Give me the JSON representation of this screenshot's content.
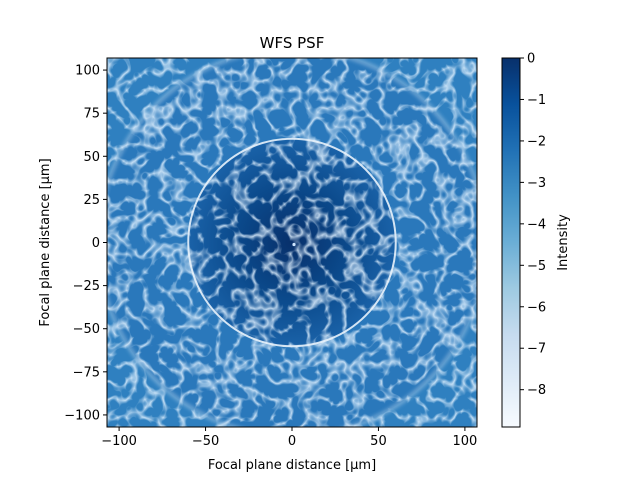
{
  "chart_data": {
    "type": "heatmap",
    "title": "WFS PSF",
    "xlabel": "Focal plane distance [μm]",
    "ylabel": "Focal plane distance [μm]",
    "xlim": [
      -107,
      107
    ],
    "ylim": [
      -107,
      107
    ],
    "xticks": [
      -100,
      -50,
      0,
      50,
      100
    ],
    "xtick_labels": [
      "−100",
      "−50",
      "0",
      "50",
      "100"
    ],
    "yticks": [
      100,
      75,
      50,
      25,
      0,
      -25,
      -50,
      -75,
      -100
    ],
    "ytick_labels": [
      "100",
      "75",
      "50",
      "25",
      "0",
      "−25",
      "−50",
      "−75",
      "−100"
    ],
    "colorbar": {
      "label": "Intensity",
      "range": [
        -8.9,
        0
      ],
      "ticks": [
        0,
        -1,
        -2,
        -3,
        -4,
        -5,
        -6,
        -7,
        -8
      ],
      "tick_labels": [
        "0",
        "−1",
        "−2",
        "−3",
        "−4",
        "−5",
        "−6",
        "−7",
        "−8"
      ],
      "colormap": "Blues",
      "colors": [
        "#f7fbff",
        "#deebf7",
        "#c6dbef",
        "#9ecae1",
        "#6baed6",
        "#4292c6",
        "#2171b5",
        "#08519c",
        "#08306b"
      ]
    },
    "features": {
      "inner_ring_radius": 60,
      "outer_ring_radius": 112,
      "inner_level": -1.2,
      "outer_level": -2.6
    },
    "grid": false
  }
}
